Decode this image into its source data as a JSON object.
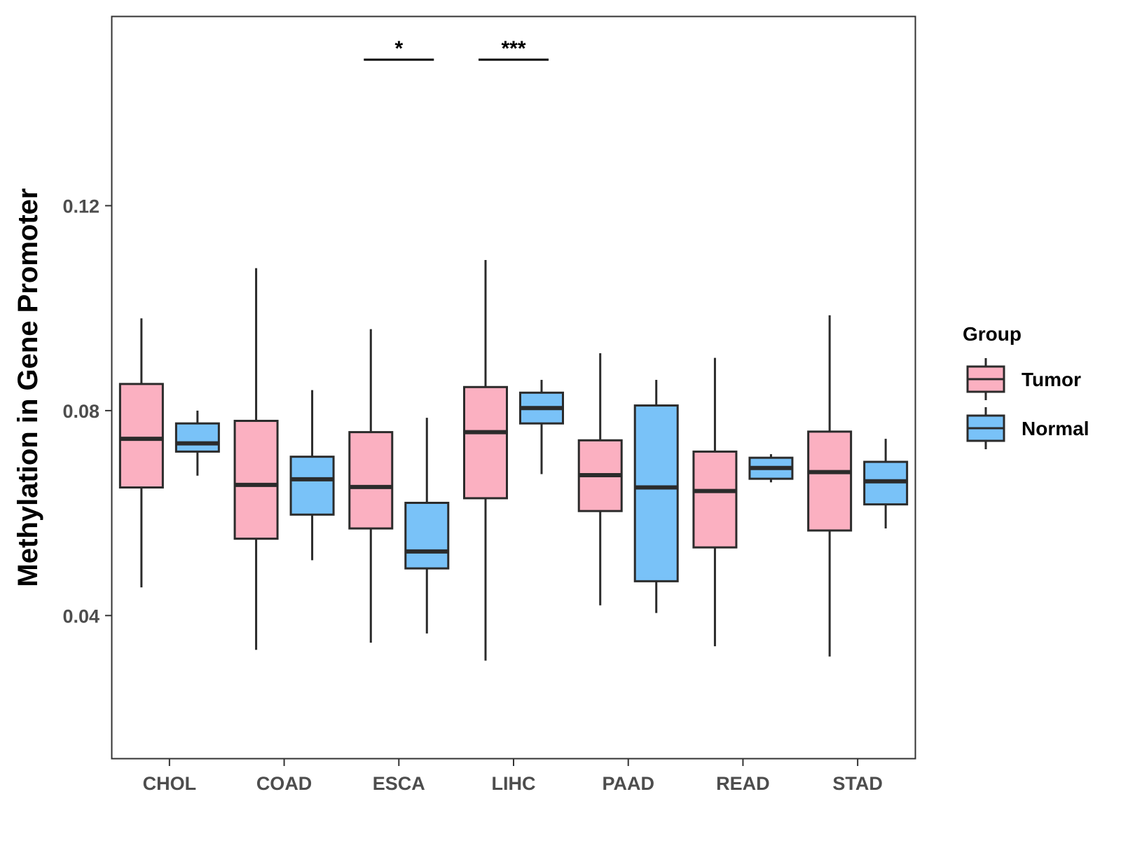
{
  "chart_data": {
    "type": "boxplot",
    "title": "",
    "xlabel": "",
    "ylabel": "Methylation in Gene Promoter",
    "ylim": [
      0.012,
      0.157
    ],
    "yticks": [
      0.04,
      0.08,
      0.12
    ],
    "ytick_labels": [
      "0.04",
      "0.08",
      "0.12"
    ],
    "grid": false,
    "categories": [
      "CHOL",
      "COAD",
      "ESCA",
      "LIHC",
      "PAAD",
      "READ",
      "STAD"
    ],
    "legend": {
      "title": "Group",
      "position": "right",
      "entries": [
        {
          "name": "Tumor",
          "color": "#fbb0c1"
        },
        {
          "name": "Normal",
          "color": "#79c2f8"
        }
      ]
    },
    "series": [
      {
        "name": "Tumor",
        "color": "#fbb0c1",
        "boxes": [
          {
            "category": "CHOL",
            "min": 0.0455,
            "q1": 0.065,
            "median": 0.0745,
            "q3": 0.0852,
            "max": 0.098
          },
          {
            "category": "COAD",
            "min": 0.0333,
            "q1": 0.055,
            "median": 0.0655,
            "q3": 0.078,
            "max": 0.1078
          },
          {
            "category": "ESCA",
            "min": 0.0347,
            "q1": 0.057,
            "median": 0.0651,
            "q3": 0.0758,
            "max": 0.0959
          },
          {
            "category": "LIHC",
            "min": 0.0312,
            "q1": 0.0629,
            "median": 0.0758,
            "q3": 0.0846,
            "max": 0.1094
          },
          {
            "category": "PAAD",
            "min": 0.042,
            "q1": 0.0604,
            "median": 0.0674,
            "q3": 0.0742,
            "max": 0.0912
          },
          {
            "category": "READ",
            "min": 0.034,
            "q1": 0.0533,
            "median": 0.0643,
            "q3": 0.072,
            "max": 0.0903
          },
          {
            "category": "STAD",
            "min": 0.032,
            "q1": 0.0566,
            "median": 0.068,
            "q3": 0.0759,
            "max": 0.0986
          }
        ]
      },
      {
        "name": "Normal",
        "color": "#79c2f8",
        "boxes": [
          {
            "category": "CHOL",
            "min": 0.0673,
            "q1": 0.072,
            "median": 0.0736,
            "q3": 0.0775,
            "max": 0.08
          },
          {
            "category": "COAD",
            "min": 0.0508,
            "q1": 0.0597,
            "median": 0.0666,
            "q3": 0.071,
            "max": 0.084
          },
          {
            "category": "ESCA",
            "min": 0.0365,
            "q1": 0.0492,
            "median": 0.0525,
            "q3": 0.062,
            "max": 0.0786
          },
          {
            "category": "LIHC",
            "min": 0.0676,
            "q1": 0.0775,
            "median": 0.0805,
            "q3": 0.0835,
            "max": 0.086
          },
          {
            "category": "PAAD",
            "min": 0.0405,
            "q1": 0.0467,
            "median": 0.065,
            "q3": 0.081,
            "max": 0.086
          },
          {
            "category": "READ",
            "min": 0.066,
            "q1": 0.0667,
            "median": 0.0688,
            "q3": 0.0708,
            "max": 0.0715
          },
          {
            "category": "STAD",
            "min": 0.057,
            "q1": 0.0617,
            "median": 0.0662,
            "q3": 0.07,
            "max": 0.0745
          }
        ]
      }
    ],
    "annotations": [
      {
        "category": "ESCA",
        "text": "*",
        "y": 0.1485
      },
      {
        "category": "LIHC",
        "text": "***",
        "y": 0.1485
      }
    ]
  }
}
